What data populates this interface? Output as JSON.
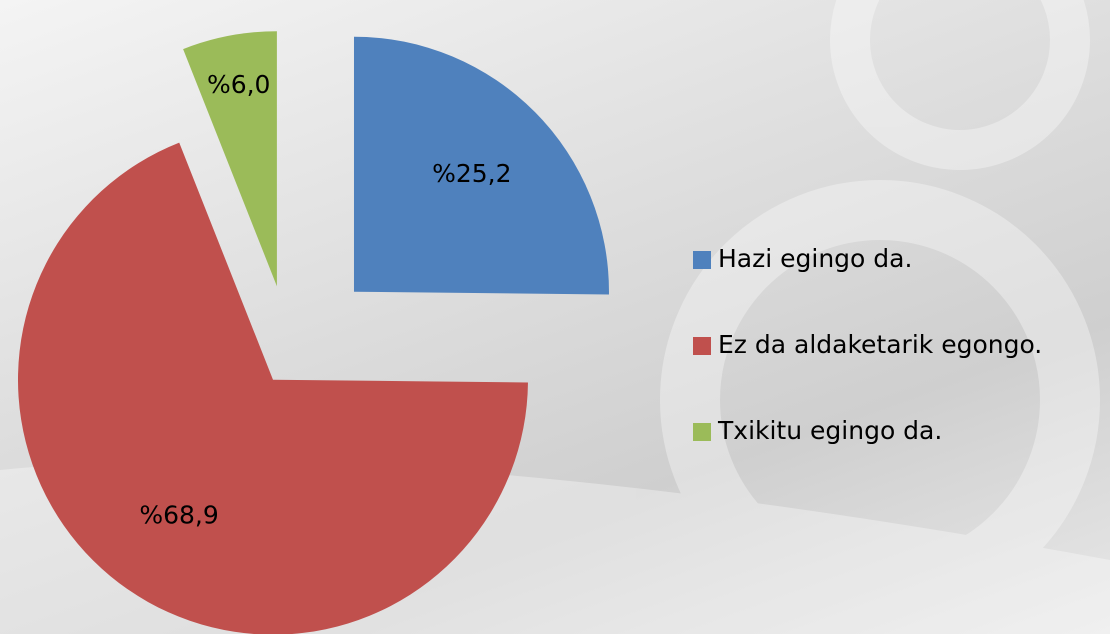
{
  "chart_data": {
    "type": "pie",
    "categories": [
      "Hazi egingo da.",
      "Ez da aldaketarik egongo.",
      "Txikitu egingo da."
    ],
    "values": [
      25.2,
      68.9,
      6.0
    ],
    "value_labels": [
      "%25,2",
      "%68,9",
      "%6,0"
    ],
    "colors": [
      "#4f81bd",
      "#c0504d",
      "#9bbb59"
    ],
    "legend": "right"
  }
}
